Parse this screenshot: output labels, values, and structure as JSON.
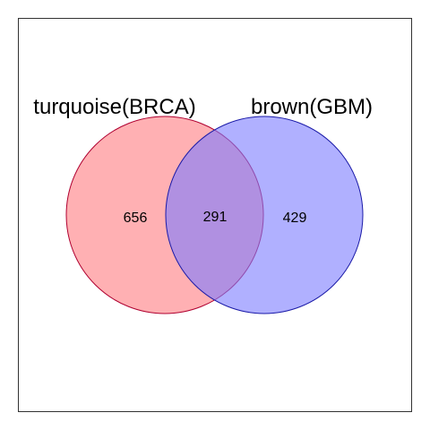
{
  "venn": {
    "sets": [
      {
        "label": "turquoise(BRCA)",
        "fill": "#ff7c80",
        "stroke": "#b00030"
      },
      {
        "label": "brown(GBM)",
        "fill": "#7c7cff",
        "stroke": "#1a1aa8"
      }
    ],
    "counts": {
      "only_left": "656",
      "overlap": "291",
      "only_right": "429"
    },
    "frame_color": "#333333"
  }
}
